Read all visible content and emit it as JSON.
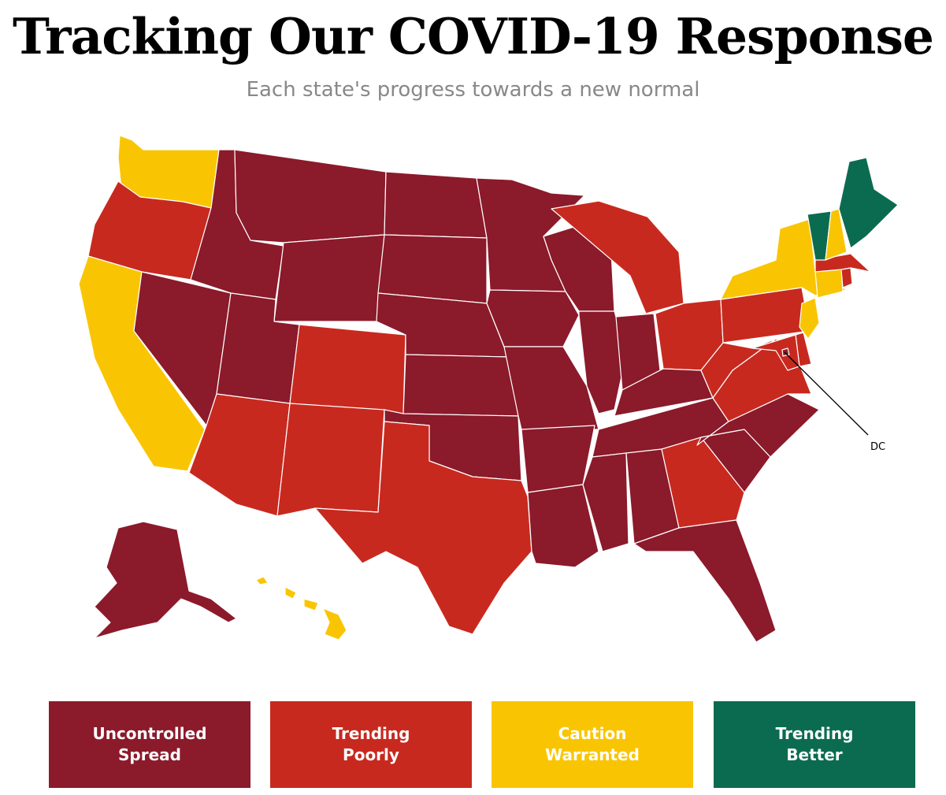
{
  "title": "Tracking Our COVID-19 Response",
  "subtitle": "Each state's progress towards a new normal",
  "callout_label": "DC",
  "legend": [
    {
      "key": "uncontrolled",
      "label": "Uncontrolled\nSpread",
      "color": "#8b1a2b"
    },
    {
      "key": "poorly",
      "label": "Trending\nPoorly",
      "color": "#c0311f"
    },
    {
      "key": "caution",
      "label": "Caution\nWarranted",
      "color": "#f5c244"
    },
    {
      "key": "better",
      "label": "Trending\nBetter",
      "color": "#1e6a53"
    }
  ],
  "legend_colors": {
    "uncontrolled": "#8b1a2b",
    "poorly": "#c8291f",
    "caution": "#f9c503",
    "better": "#0b6b50"
  },
  "states": {
    "WA": "caution",
    "OR": "poorly",
    "CA": "caution",
    "NV": "uncontrolled",
    "ID": "uncontrolled",
    "MT": "uncontrolled",
    "WY": "uncontrolled",
    "UT": "uncontrolled",
    "AZ": "poorly",
    "CO": "poorly",
    "NM": "poorly",
    "ND": "uncontrolled",
    "SD": "uncontrolled",
    "NE": "uncontrolled",
    "KS": "uncontrolled",
    "OK": "uncontrolled",
    "TX": "poorly",
    "MN": "uncontrolled",
    "IA": "uncontrolled",
    "MO": "uncontrolled",
    "AR": "uncontrolled",
    "LA": "uncontrolled",
    "WI": "uncontrolled",
    "IL": "uncontrolled",
    "MI": "poorly",
    "IN": "uncontrolled",
    "OH": "poorly",
    "KY": "uncontrolled",
    "TN": "uncontrolled",
    "MS": "uncontrolled",
    "AL": "uncontrolled",
    "GA": "poorly",
    "FL": "uncontrolled",
    "SC": "uncontrolled",
    "NC": "uncontrolled",
    "VA": "poorly",
    "WV": "poorly",
    "PA": "poorly",
    "NY": "caution",
    "NJ": "caution",
    "DE": "poorly",
    "MD": "poorly",
    "DC": "uncontrolled",
    "CT": "caution",
    "RI": "poorly",
    "MA": "poorly",
    "VT": "better",
    "NH": "caution",
    "ME": "better",
    "AK": "uncontrolled",
    "HI": "caution"
  }
}
